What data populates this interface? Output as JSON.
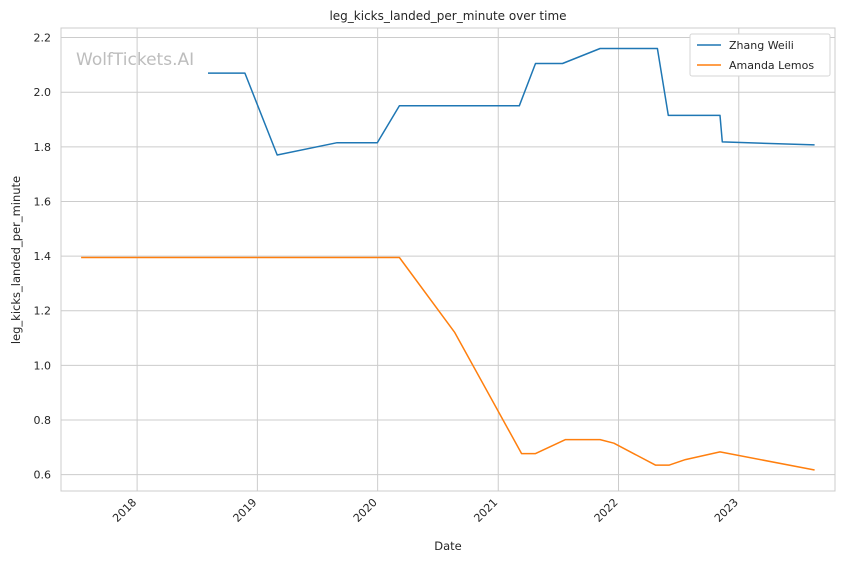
{
  "chart_data": {
    "type": "line",
    "title": "leg_kicks_landed_per_minute over time",
    "xlabel": "Date",
    "ylabel": "leg_kicks_landed_per_minute",
    "watermark": "WolfTickets.AI",
    "x_ticks": [
      "2018",
      "2019",
      "2020",
      "2021",
      "2022",
      "2023"
    ],
    "y_ticks": [
      "0.6",
      "0.8",
      "1.0",
      "1.2",
      "1.4",
      "1.6",
      "1.8",
      "2.0",
      "2.2"
    ],
    "xlim": [
      "2017-05-15",
      "2023-10-20"
    ],
    "ylim": [
      0.54,
      2.235
    ],
    "grid": true,
    "legend_position": "top-right",
    "series": [
      {
        "name": "Zhang Weili",
        "color": "#1f77b4",
        "points": [
          [
            "2018-08-04",
            2.07
          ],
          [
            "2018-11-24",
            2.07
          ],
          [
            "2019-03-02",
            1.77
          ],
          [
            "2019-08-31",
            1.815
          ],
          [
            "2019-12-31",
            1.815
          ],
          [
            "2020-03-07",
            1.95
          ],
          [
            "2021-03-06",
            1.95
          ],
          [
            "2021-04-24",
            2.105
          ],
          [
            "2021-07-15",
            2.105
          ],
          [
            "2021-11-06",
            2.16
          ],
          [
            "2022-04-29",
            2.16
          ],
          [
            "2022-06-01",
            1.915
          ],
          [
            "2022-11-05",
            1.915
          ],
          [
            "2022-11-12",
            1.818
          ],
          [
            "2023-08-19",
            1.807
          ]
        ]
      },
      {
        "name": "Amanda Lemos",
        "color": "#ff7f0e",
        "points": [
          [
            "2017-07-15",
            1.395
          ],
          [
            "2020-03-07",
            1.395
          ],
          [
            "2020-08-22",
            1.12
          ],
          [
            "2021-03-13",
            0.677
          ],
          [
            "2021-04-24",
            0.677
          ],
          [
            "2021-07-24",
            0.728
          ],
          [
            "2021-11-06",
            0.728
          ],
          [
            "2021-12-18",
            0.715
          ],
          [
            "2022-04-23",
            0.635
          ],
          [
            "2022-06-04",
            0.635
          ],
          [
            "2022-07-23",
            0.655
          ],
          [
            "2022-11-05",
            0.683
          ],
          [
            "2023-08-19",
            0.617
          ]
        ]
      }
    ]
  }
}
